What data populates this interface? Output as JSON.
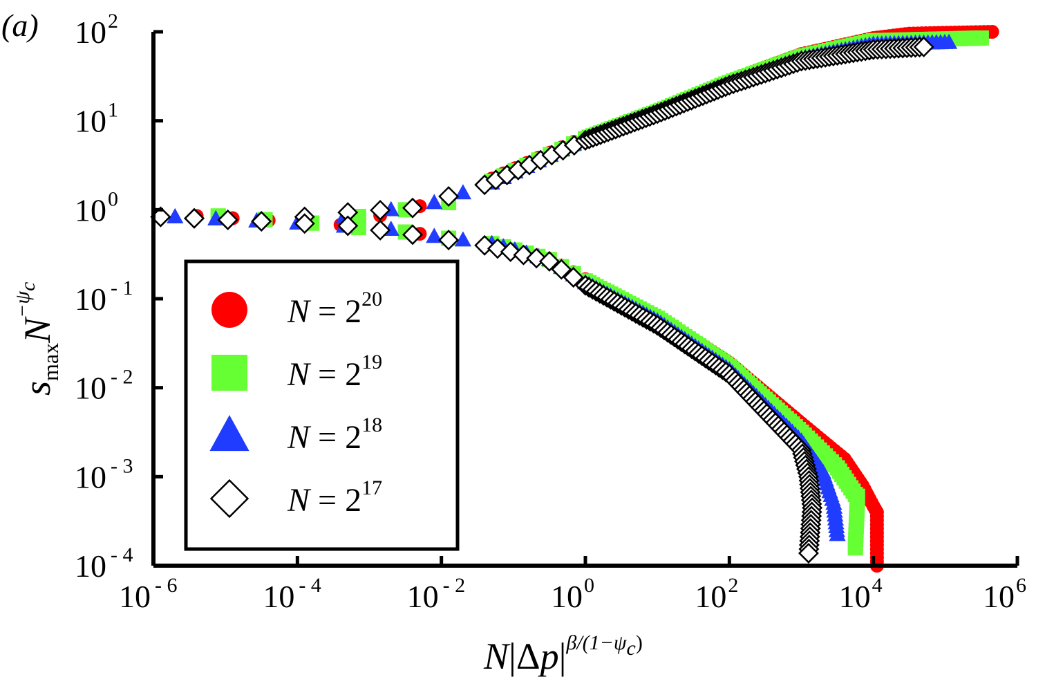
{
  "chart_data": {
    "type": "scatter",
    "panel_label": "(a)",
    "xscale": "log",
    "yscale": "log",
    "xlim_exp": [
      -6,
      6
    ],
    "ylim_exp": [
      -4,
      2
    ],
    "xlabel": "N|Δp|^{β/(1−ψc)}",
    "ylabel": "s_max N^{−ψc}",
    "x_ticks": [
      {
        "base": "10",
        "exp": "-6",
        "value": -6
      },
      {
        "base": "10",
        "exp": "-4",
        "value": -4
      },
      {
        "base": "10",
        "exp": "-2",
        "value": -2
      },
      {
        "base": "10",
        "exp": "0",
        "value": 0
      },
      {
        "base": "10",
        "exp": "2",
        "value": 2
      },
      {
        "base": "10",
        "exp": "4",
        "value": 4
      },
      {
        "base": "10",
        "exp": "6",
        "value": 6
      }
    ],
    "y_ticks": [
      {
        "base": "10",
        "exp": "2",
        "value": 2
      },
      {
        "base": "10",
        "exp": "1",
        "value": 1
      },
      {
        "base": "10",
        "exp": "0",
        "value": 0
      },
      {
        "base": "10",
        "exp": "-1",
        "value": -1
      },
      {
        "base": "10",
        "exp": "-2",
        "value": -2
      },
      {
        "base": "10",
        "exp": "-3",
        "value": -3
      },
      {
        "base": "10",
        "exp": "-4",
        "value": -4
      }
    ],
    "legend": {
      "position": "lower-left",
      "entries": [
        {
          "label_prefix": "N = 2",
          "label_exp": "20",
          "series": 0
        },
        {
          "label_prefix": "N = 2",
          "label_exp": "19",
          "series": 1
        },
        {
          "label_prefix": "N = 2",
          "label_exp": "18",
          "series": 2
        },
        {
          "label_prefix": "N = 2",
          "label_exp": "17",
          "series": 3
        }
      ]
    },
    "series": [
      {
        "name": "N = 2^20",
        "marker": "circle",
        "color": "#ff0000",
        "fill": "#ff0000",
        "upper_branch_log": [
          [
            -5.4,
            -0.07
          ],
          [
            -3.4,
            -0.17
          ],
          [
            -2.3,
            0.04
          ],
          [
            -1.9,
            0.12
          ],
          [
            -1.3,
            0.35
          ],
          [
            0,
            0.82
          ],
          [
            1,
            1.12
          ],
          [
            2,
            1.45
          ],
          [
            3,
            1.75
          ],
          [
            4,
            1.93
          ],
          [
            4.5,
            1.98
          ],
          [
            5.65,
            2.0
          ]
        ],
        "lower_branch_log": [
          [
            -5.4,
            -0.07
          ],
          [
            -3.4,
            -0.17
          ],
          [
            -2.3,
            -0.27
          ],
          [
            -1.9,
            -0.32
          ],
          [
            -1.3,
            -0.37
          ],
          [
            -0.5,
            -0.55
          ],
          [
            0,
            -0.78
          ],
          [
            1,
            -1.2
          ],
          [
            2,
            -1.72
          ],
          [
            3,
            -2.4
          ],
          [
            3.6,
            -2.8
          ],
          [
            3.85,
            -3.1
          ],
          [
            4.0,
            -3.33
          ],
          [
            4.05,
            -3.4
          ],
          [
            4.05,
            -4.0
          ]
        ]
      },
      {
        "name": "N = 2^19",
        "marker": "square",
        "color": "#66ff33",
        "fill": "#66ff33",
        "upper_branch_log": [
          [
            -5.1,
            -0.07
          ],
          [
            -3.8,
            -0.15
          ],
          [
            -2.5,
            0.0
          ],
          [
            -1.9,
            0.08
          ],
          [
            -1.3,
            0.32
          ],
          [
            0,
            0.8
          ],
          [
            1,
            1.1
          ],
          [
            2,
            1.43
          ],
          [
            3,
            1.72
          ],
          [
            4,
            1.9
          ],
          [
            5.5,
            1.93
          ]
        ],
        "lower_branch_log": [
          [
            -5.1,
            -0.07
          ],
          [
            -3.8,
            -0.15
          ],
          [
            -2.5,
            -0.25
          ],
          [
            -1.9,
            -0.32
          ],
          [
            -1.3,
            -0.38
          ],
          [
            -0.5,
            -0.56
          ],
          [
            0,
            -0.8
          ],
          [
            1,
            -1.22
          ],
          [
            2,
            -1.76
          ],
          [
            3,
            -2.5
          ],
          [
            3.5,
            -2.9
          ],
          [
            3.75,
            -3.2
          ],
          [
            3.78,
            -3.22
          ],
          [
            3.75,
            -3.8
          ]
        ]
      },
      {
        "name": "N = 2^18",
        "marker": "triangle",
        "color": "#1f3cff",
        "fill": "#1f3cff",
        "upper_branch_log": [
          [
            -5.7,
            -0.08
          ],
          [
            -4.0,
            -0.15
          ],
          [
            -2.7,
            0.0
          ],
          [
            -2.1,
            0.08
          ],
          [
            -1.3,
            0.3
          ],
          [
            0,
            0.8
          ],
          [
            1,
            1.1
          ],
          [
            2,
            1.42
          ],
          [
            3,
            1.7
          ],
          [
            4,
            1.86
          ],
          [
            5.05,
            1.88
          ]
        ],
        "lower_branch_log": [
          [
            -5.7,
            -0.08
          ],
          [
            -4.0,
            -0.15
          ],
          [
            -2.7,
            -0.22
          ],
          [
            -2.1,
            -0.3
          ],
          [
            -1.3,
            -0.38
          ],
          [
            -0.5,
            -0.56
          ],
          [
            0,
            -0.82
          ],
          [
            1,
            -1.25
          ],
          [
            2,
            -1.8
          ],
          [
            3,
            -2.6
          ],
          [
            3.3,
            -2.95
          ],
          [
            3.45,
            -3.3
          ],
          [
            3.5,
            -3.65
          ]
        ]
      },
      {
        "name": "N = 2^17",
        "marker": "diamond",
        "color": "#000000",
        "fill": "#ffffff",
        "upper_branch_log": [
          [
            -5.9,
            -0.08
          ],
          [
            -4.5,
            -0.13
          ],
          [
            -3.3,
            -0.03
          ],
          [
            -2.4,
            0.02
          ],
          [
            -1.4,
            0.28
          ],
          [
            0,
            0.78
          ],
          [
            1,
            1.08
          ],
          [
            2,
            1.4
          ],
          [
            3,
            1.67
          ],
          [
            4,
            1.8
          ],
          [
            4.7,
            1.83
          ]
        ],
        "lower_branch_log": [
          [
            -5.9,
            -0.08
          ],
          [
            -4.5,
            -0.13
          ],
          [
            -3.3,
            -0.18
          ],
          [
            -2.4,
            -0.28
          ],
          [
            -1.4,
            -0.4
          ],
          [
            -0.5,
            -0.58
          ],
          [
            0,
            -0.85
          ],
          [
            1,
            -1.3
          ],
          [
            2,
            -1.85
          ],
          [
            3,
            -2.7
          ],
          [
            3.1,
            -3.0
          ],
          [
            3.15,
            -3.35
          ],
          [
            3.1,
            -3.86
          ]
        ]
      }
    ]
  }
}
